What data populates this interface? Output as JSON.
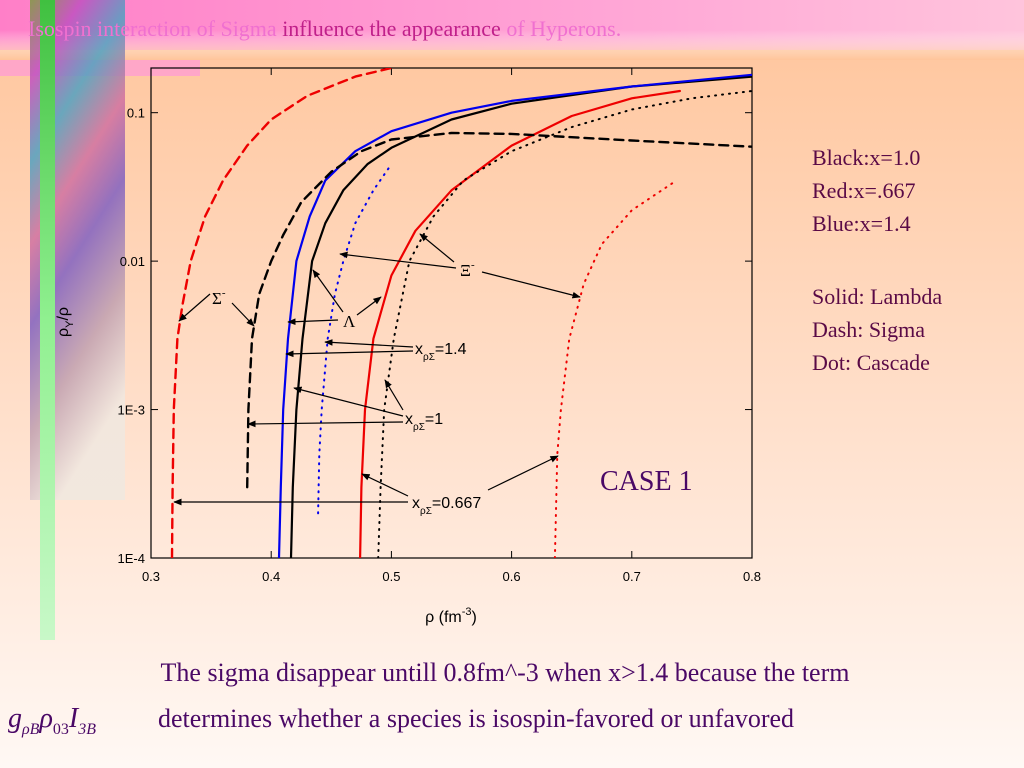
{
  "header": {
    "title": [
      "Isospin interaction of Sigma ",
      "influence the appearance",
      " of Hyperons."
    ]
  },
  "chart_data": {
    "type": "line",
    "log_y": true,
    "xlim": [
      0.3,
      0.8
    ],
    "xticks": [
      0.3,
      0.4,
      0.5,
      0.6,
      0.7,
      0.8
    ],
    "ylim": [
      0.0001,
      0.2
    ],
    "yticks": [
      {
        "value": 0.0001,
        "label": "1E-4"
      },
      {
        "value": 0.001,
        "label": "1E-3"
      },
      0.01,
      0.1
    ],
    "x_label": [
      "ρ  (fm",
      "-3",
      ")"
    ],
    "y_label": [
      "ρ",
      "Y",
      "/ρ"
    ],
    "series": [
      {
        "color": "#000000",
        "style": "solid",
        "x": [
          0.4165,
          0.418,
          0.421,
          0.426,
          0.434,
          0.445,
          0.46,
          0.48,
          0.5,
          0.55,
          0.6,
          0.7,
          0.8
        ],
        "values": [
          0.0001,
          0.0003,
          0.001,
          0.003,
          0.01,
          0.018,
          0.03,
          0.045,
          0.058,
          0.09,
          0.115,
          0.15,
          0.175
        ]
      },
      {
        "color": "#0000ee",
        "style": "solid",
        "x": [
          0.4065,
          0.408,
          0.41,
          0.414,
          0.421,
          0.432,
          0.445,
          0.47,
          0.5,
          0.55,
          0.6,
          0.7,
          0.8
        ],
        "values": [
          0.0001,
          0.0003,
          0.001,
          0.003,
          0.01,
          0.02,
          0.035,
          0.055,
          0.075,
          0.1,
          0.12,
          0.15,
          0.18
        ]
      },
      {
        "color": "#ee0000",
        "style": "solid",
        "x": [
          0.474,
          0.475,
          0.478,
          0.485,
          0.5,
          0.52,
          0.55,
          0.6,
          0.65,
          0.7,
          0.74
        ],
        "values": [
          0.0001,
          0.0003,
          0.001,
          0.003,
          0.008,
          0.016,
          0.03,
          0.06,
          0.095,
          0.125,
          0.14
        ]
      },
      {
        "color": "#ee0000",
        "style": "dash",
        "x": [
          0.3175,
          0.318,
          0.319,
          0.322,
          0.326,
          0.333,
          0.345,
          0.36,
          0.38,
          0.4,
          0.43,
          0.47,
          0.5
        ],
        "values": [
          0.0001,
          0.0003,
          0.001,
          0.003,
          0.005,
          0.01,
          0.02,
          0.035,
          0.06,
          0.09,
          0.13,
          0.175,
          0.2
        ]
      },
      {
        "color": "#000000",
        "style": "dash",
        "x": [
          0.38,
          0.381,
          0.384,
          0.39,
          0.4,
          0.41,
          0.425,
          0.45,
          0.475,
          0.5,
          0.55,
          0.6,
          0.7,
          0.8
        ],
        "values": [
          0.0003,
          0.001,
          0.003,
          0.006,
          0.01,
          0.015,
          0.025,
          0.04,
          0.055,
          0.066,
          0.073,
          0.072,
          0.065,
          0.059
        ]
      },
      {
        "color": "#0000ee",
        "style": "dot",
        "x": [
          0.439,
          0.44,
          0.442,
          0.447,
          0.453,
          0.46,
          0.47,
          0.485,
          0.5
        ],
        "values": [
          0.0002,
          0.0005,
          0.001,
          0.003,
          0.006,
          0.01,
          0.018,
          0.03,
          0.045
        ]
      },
      {
        "color": "#000000",
        "style": "dot",
        "x": [
          0.489,
          0.491,
          0.494,
          0.502,
          0.515,
          0.535,
          0.56,
          0.6,
          0.65,
          0.7,
          0.75,
          0.8
        ],
        "values": [
          0.0001,
          0.0003,
          0.001,
          0.003,
          0.01,
          0.02,
          0.035,
          0.055,
          0.08,
          0.105,
          0.125,
          0.14
        ]
      },
      {
        "color": "#ee0000",
        "style": "dot",
        "x": [
          0.636,
          0.638,
          0.641,
          0.648,
          0.66,
          0.675,
          0.7,
          0.735
        ],
        "values": [
          0.0001,
          0.0005,
          0.001,
          0.003,
          0.007,
          0.013,
          0.022,
          0.034
        ]
      }
    ],
    "sigma_label": [
      "Σ",
      "-"
    ],
    "lambda_label": "Λ",
    "xi_label": [
      "Ξ",
      "-"
    ],
    "x_labels": [
      [
        "x",
        "ρΣ",
        "=1.4"
      ],
      [
        "x",
        "ρΣ",
        "=1"
      ],
      [
        "x",
        "ρΣ",
        "=0.667"
      ]
    ],
    "case_label": "CASE 1"
  },
  "notes": [
    [
      "Black:x=1.0",
      "Red:x=.667",
      "Blue:x=1.4"
    ],
    [
      "Solid: Lambda",
      "Dash: Sigma",
      "Dot: Cascade"
    ]
  ],
  "caption": {
    "line1": "The sigma disappear untill 0.8fm^-3 when x>1.4 because the term",
    "formula": [
      "g",
      "ρB",
      "ρ",
      "03",
      "I",
      "3B"
    ],
    "line2": "determines whether a species is isospin-favored or unfavored"
  }
}
